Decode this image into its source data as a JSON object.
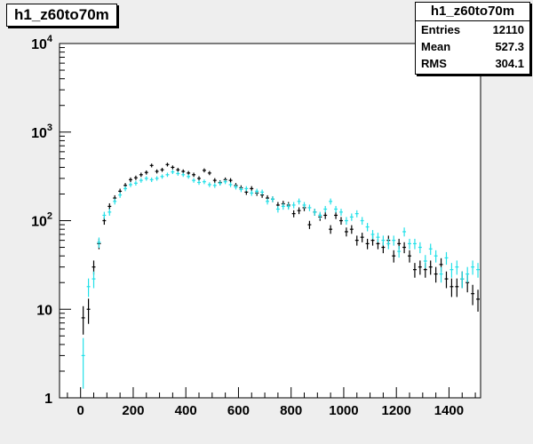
{
  "chart_data": {
    "type": "scatter",
    "title": "h1_z60to70m",
    "stats": {
      "title": "h1_z60to70m",
      "rows": [
        {
          "label": "Entries",
          "value": "12110"
        },
        {
          "label": "Mean",
          "value": "527.3"
        },
        {
          "label": "RMS",
          "value": "304.1"
        }
      ]
    },
    "xlim": [
      -80,
      1520
    ],
    "ylim": [
      1,
      10000
    ],
    "yscale": "log",
    "x_ticks": [
      0,
      200,
      400,
      600,
      800,
      1000,
      1200,
      1400
    ],
    "y_ticks": [
      {
        "value": 1,
        "base": "1",
        "exp": ""
      },
      {
        "value": 10,
        "base": "10",
        "exp": ""
      },
      {
        "value": 100,
        "base": "10",
        "exp": "2"
      },
      {
        "value": 1000,
        "base": "10",
        "exp": "3"
      },
      {
        "value": 10000,
        "base": "10",
        "exp": "4"
      }
    ],
    "bin_halfwidth": 10,
    "series": [
      {
        "color": "#000000",
        "points": [
          {
            "x": 10,
            "y": 8
          },
          {
            "x": 30,
            "y": 10
          },
          {
            "x": 50,
            "y": 30
          },
          {
            "x": 70,
            "y": 55
          },
          {
            "x": 90,
            "y": 100
          },
          {
            "x": 110,
            "y": 145
          },
          {
            "x": 130,
            "y": 180
          },
          {
            "x": 150,
            "y": 215
          },
          {
            "x": 170,
            "y": 250
          },
          {
            "x": 190,
            "y": 290
          },
          {
            "x": 210,
            "y": 305
          },
          {
            "x": 230,
            "y": 330
          },
          {
            "x": 250,
            "y": 350
          },
          {
            "x": 270,
            "y": 420
          },
          {
            "x": 290,
            "y": 360
          },
          {
            "x": 310,
            "y": 375
          },
          {
            "x": 330,
            "y": 430
          },
          {
            "x": 350,
            "y": 400
          },
          {
            "x": 370,
            "y": 375
          },
          {
            "x": 390,
            "y": 360
          },
          {
            "x": 410,
            "y": 345
          },
          {
            "x": 430,
            "y": 330
          },
          {
            "x": 450,
            "y": 300
          },
          {
            "x": 470,
            "y": 370
          },
          {
            "x": 490,
            "y": 345
          },
          {
            "x": 510,
            "y": 285
          },
          {
            "x": 530,
            "y": 270
          },
          {
            "x": 550,
            "y": 290
          },
          {
            "x": 570,
            "y": 285
          },
          {
            "x": 590,
            "y": 250
          },
          {
            "x": 610,
            "y": 235
          },
          {
            "x": 630,
            "y": 210
          },
          {
            "x": 650,
            "y": 230
          },
          {
            "x": 670,
            "y": 205
          },
          {
            "x": 690,
            "y": 195
          },
          {
            "x": 710,
            "y": 180
          },
          {
            "x": 730,
            "y": 175
          },
          {
            "x": 750,
            "y": 150
          },
          {
            "x": 770,
            "y": 155
          },
          {
            "x": 790,
            "y": 150
          },
          {
            "x": 810,
            "y": 120
          },
          {
            "x": 830,
            "y": 130
          },
          {
            "x": 850,
            "y": 140
          },
          {
            "x": 870,
            "y": 90
          },
          {
            "x": 890,
            "y": 125
          },
          {
            "x": 910,
            "y": 110
          },
          {
            "x": 930,
            "y": 115
          },
          {
            "x": 950,
            "y": 80
          },
          {
            "x": 970,
            "y": 115
          },
          {
            "x": 990,
            "y": 100
          },
          {
            "x": 1010,
            "y": 75
          },
          {
            "x": 1030,
            "y": 80
          },
          {
            "x": 1050,
            "y": 60
          },
          {
            "x": 1070,
            "y": 65
          },
          {
            "x": 1090,
            "y": 55
          },
          {
            "x": 1110,
            "y": 60
          },
          {
            "x": 1130,
            "y": 55
          },
          {
            "x": 1150,
            "y": 50
          },
          {
            "x": 1170,
            "y": 60
          },
          {
            "x": 1190,
            "y": 40
          },
          {
            "x": 1210,
            "y": 55
          },
          {
            "x": 1230,
            "y": 50
          },
          {
            "x": 1250,
            "y": 40
          },
          {
            "x": 1270,
            "y": 28
          },
          {
            "x": 1290,
            "y": 30
          },
          {
            "x": 1310,
            "y": 28
          },
          {
            "x": 1330,
            "y": 30
          },
          {
            "x": 1350,
            "y": 25
          },
          {
            "x": 1370,
            "y": 32
          },
          {
            "x": 1390,
            "y": 22
          },
          {
            "x": 1410,
            "y": 18
          },
          {
            "x": 1430,
            "y": 18
          },
          {
            "x": 1450,
            "y": 22
          },
          {
            "x": 1470,
            "y": 20
          },
          {
            "x": 1490,
            "y": 15
          },
          {
            "x": 1510,
            "y": 13
          }
        ]
      },
      {
        "color": "#22e0e8",
        "points": [
          {
            "x": 10,
            "y": 3
          },
          {
            "x": 30,
            "y": 18
          },
          {
            "x": 50,
            "y": 22
          },
          {
            "x": 70,
            "y": 57
          },
          {
            "x": 90,
            "y": 115
          },
          {
            "x": 110,
            "y": 125
          },
          {
            "x": 130,
            "y": 165
          },
          {
            "x": 150,
            "y": 195
          },
          {
            "x": 170,
            "y": 230
          },
          {
            "x": 190,
            "y": 255
          },
          {
            "x": 210,
            "y": 265
          },
          {
            "x": 230,
            "y": 285
          },
          {
            "x": 250,
            "y": 300
          },
          {
            "x": 270,
            "y": 290
          },
          {
            "x": 290,
            "y": 300
          },
          {
            "x": 310,
            "y": 315
          },
          {
            "x": 330,
            "y": 330
          },
          {
            "x": 350,
            "y": 355
          },
          {
            "x": 370,
            "y": 340
          },
          {
            "x": 390,
            "y": 330
          },
          {
            "x": 410,
            "y": 315
          },
          {
            "x": 430,
            "y": 285
          },
          {
            "x": 450,
            "y": 270
          },
          {
            "x": 470,
            "y": 275
          },
          {
            "x": 490,
            "y": 255
          },
          {
            "x": 510,
            "y": 250
          },
          {
            "x": 530,
            "y": 265
          },
          {
            "x": 550,
            "y": 275
          },
          {
            "x": 570,
            "y": 255
          },
          {
            "x": 590,
            "y": 240
          },
          {
            "x": 610,
            "y": 225
          },
          {
            "x": 630,
            "y": 230
          },
          {
            "x": 650,
            "y": 205
          },
          {
            "x": 670,
            "y": 215
          },
          {
            "x": 690,
            "y": 210
          },
          {
            "x": 710,
            "y": 165
          },
          {
            "x": 730,
            "y": 175
          },
          {
            "x": 750,
            "y": 135
          },
          {
            "x": 770,
            "y": 145
          },
          {
            "x": 790,
            "y": 145
          },
          {
            "x": 810,
            "y": 150
          },
          {
            "x": 830,
            "y": 165
          },
          {
            "x": 850,
            "y": 150
          },
          {
            "x": 870,
            "y": 140
          },
          {
            "x": 890,
            "y": 125
          },
          {
            "x": 910,
            "y": 115
          },
          {
            "x": 930,
            "y": 135
          },
          {
            "x": 950,
            "y": 165
          },
          {
            "x": 970,
            "y": 135
          },
          {
            "x": 990,
            "y": 125
          },
          {
            "x": 1010,
            "y": 100
          },
          {
            "x": 1030,
            "y": 110
          },
          {
            "x": 1050,
            "y": 120
          },
          {
            "x": 1070,
            "y": 100
          },
          {
            "x": 1090,
            "y": 85
          },
          {
            "x": 1110,
            "y": 70
          },
          {
            "x": 1130,
            "y": 65
          },
          {
            "x": 1150,
            "y": 60
          },
          {
            "x": 1170,
            "y": 55
          },
          {
            "x": 1190,
            "y": 60
          },
          {
            "x": 1210,
            "y": 45
          },
          {
            "x": 1230,
            "y": 75
          },
          {
            "x": 1250,
            "y": 55
          },
          {
            "x": 1270,
            "y": 55
          },
          {
            "x": 1290,
            "y": 50
          },
          {
            "x": 1310,
            "y": 35
          },
          {
            "x": 1330,
            "y": 48
          },
          {
            "x": 1350,
            "y": 40
          },
          {
            "x": 1370,
            "y": 25
          },
          {
            "x": 1390,
            "y": 38
          },
          {
            "x": 1410,
            "y": 28
          },
          {
            "x": 1430,
            "y": 30
          },
          {
            "x": 1450,
            "y": 22
          },
          {
            "x": 1470,
            "y": 25
          },
          {
            "x": 1490,
            "y": 30
          },
          {
            "x": 1510,
            "y": 28
          }
        ]
      }
    ]
  }
}
